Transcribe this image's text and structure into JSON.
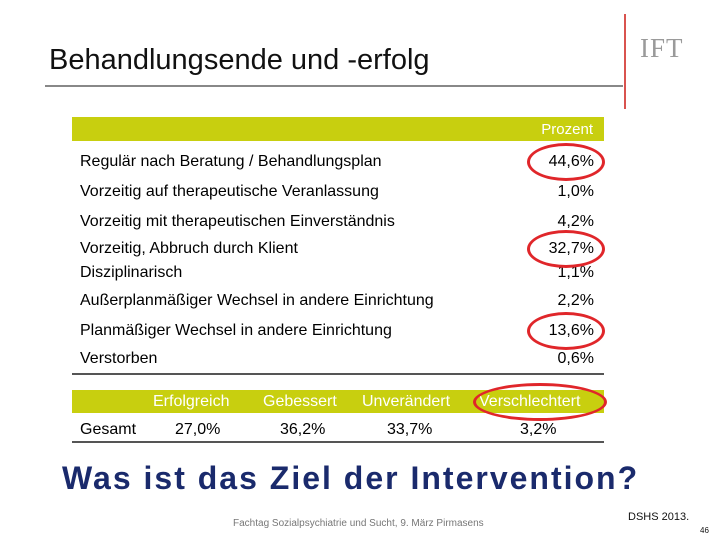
{
  "header": {
    "title": "Behandlungsende und -erfolg",
    "logo_text": "IFT"
  },
  "table1": {
    "column_header": "Prozent",
    "rows": [
      {
        "label": "Regulär nach Beratung / Behandlungsplan",
        "value": "44,6%",
        "highlighted": true
      },
      {
        "label": "Vorzeitig auf therapeutische Veranlassung",
        "value": "1,0%",
        "highlighted": false
      },
      {
        "label": "Vorzeitig mit therapeutischen Einverständnis",
        "value": "4,2%",
        "highlighted": false
      },
      {
        "label": "Vorzeitig, Abbruch durch Klient",
        "value": "32,7%",
        "highlighted": true
      },
      {
        "label": "Disziplinarisch",
        "value": "1,1%",
        "highlighted": false
      },
      {
        "label": "Außerplanmäßiger Wechsel in andere Einrichtung",
        "value": "2,2%",
        "highlighted": false
      },
      {
        "label": "Planmäßiger Wechsel in andere Einrichtung",
        "value": "13,6%",
        "highlighted": true
      },
      {
        "label": "Verstorben",
        "value": "0,6%",
        "highlighted": false
      }
    ]
  },
  "table2": {
    "columns": [
      "Erfolgreich",
      "Gebessert",
      "Unverändert",
      "Verschlechtert"
    ],
    "row_label": "Gesamt",
    "values": [
      "27,0%",
      "36,2%",
      "33,7%",
      "3,2%"
    ],
    "highlighted_column": "Verschlechtert"
  },
  "question": "Was ist das Ziel der Intervention?",
  "footer": {
    "event": "Fachtag Sozialpsychiatrie und Sucht, 9. März Pirmasens",
    "credit": "DSHS 2013.",
    "page_number": "46"
  },
  "colors": {
    "accent": "#c8cf0f",
    "highlight_ring": "#e0262a",
    "question_text": "#1a2a6c"
  }
}
